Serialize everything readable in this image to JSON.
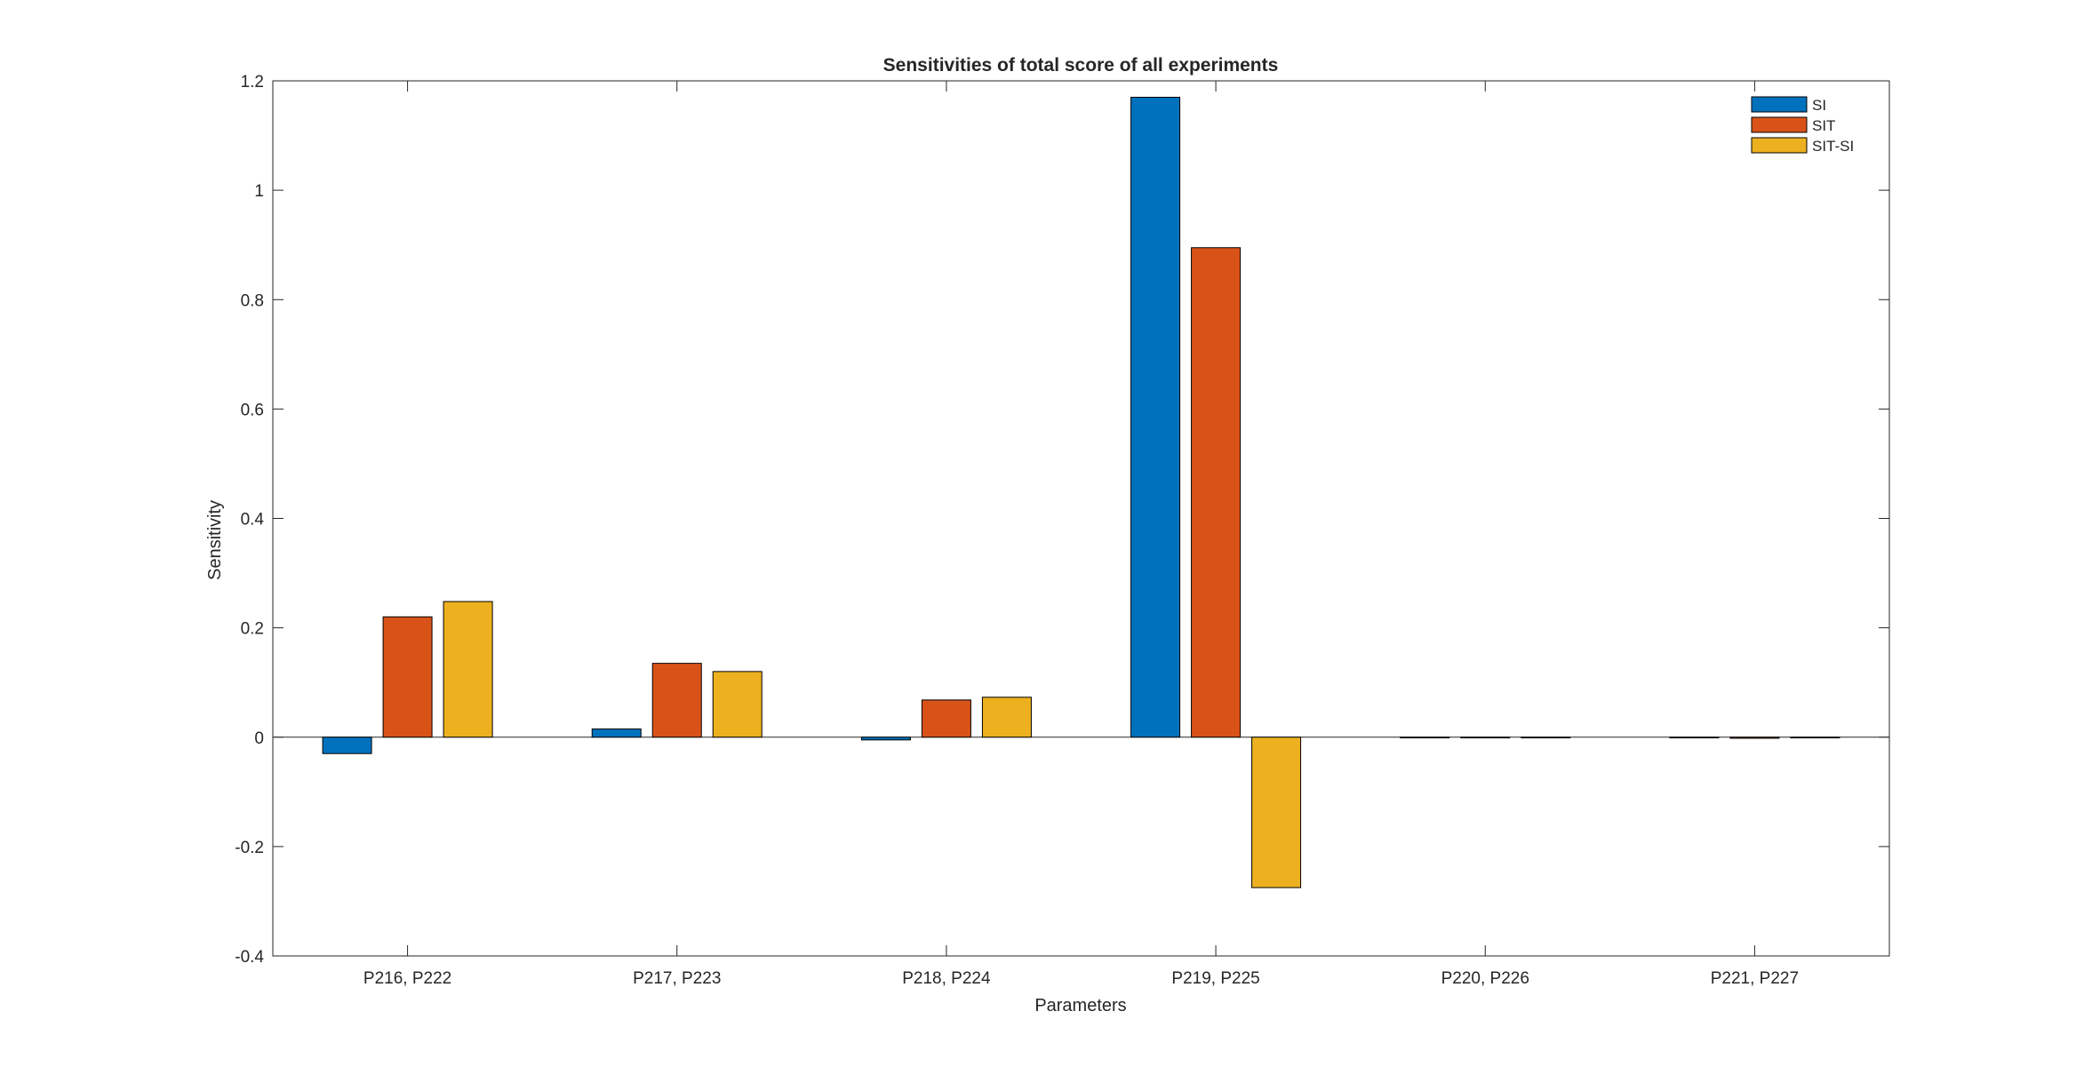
{
  "chart_data": {
    "type": "bar",
    "title": "Sensitivities of total score of all experiments",
    "xlabel": "Parameters",
    "ylabel": "Sensitivity",
    "categories": [
      "P216, P222",
      "P217, P223",
      "P218, P224",
      "P219, P225",
      "P220, P226",
      "P221, P227"
    ],
    "series": [
      {
        "name": "SI",
        "color": "#0072BD",
        "values": [
          -0.03,
          0.015,
          -0.005,
          1.17,
          0.0,
          0.0
        ]
      },
      {
        "name": "SIT",
        "color": "#D95319",
        "values": [
          0.22,
          0.135,
          0.068,
          0.895,
          0.0,
          -0.002
        ]
      },
      {
        "name": "SIT-SI",
        "color": "#EDB120",
        "values": [
          0.248,
          0.12,
          0.073,
          -0.275,
          0.0,
          0.0
        ]
      }
    ],
    "ylim": [
      -0.4,
      1.2
    ],
    "yticks": [
      "-0.4",
      "-0.2",
      "0",
      "0.2",
      "0.4",
      "0.6",
      "0.8",
      "1",
      "1.2"
    ],
    "legend_position": "top-right",
    "grid": false
  }
}
